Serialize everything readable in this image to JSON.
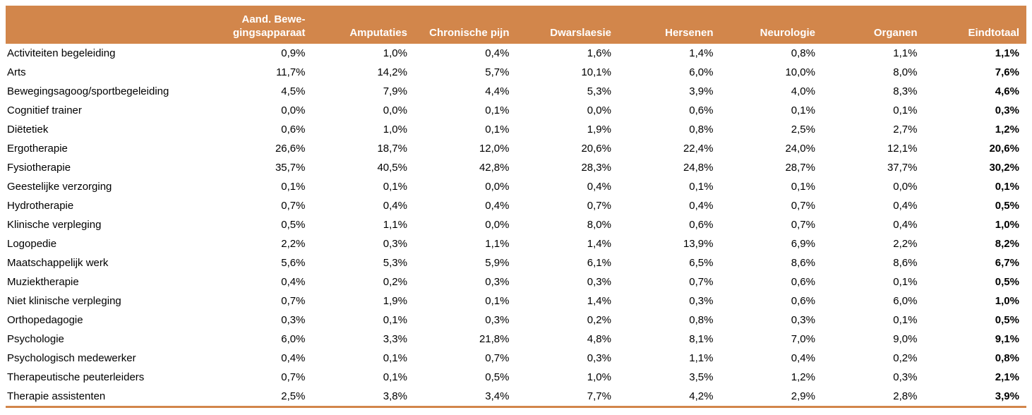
{
  "colors": {
    "header_bg": "#D2864B",
    "header_text": "#FFFFFF",
    "body_text": "#000000",
    "bottom_border": "#D2864B"
  },
  "chart_data": {
    "type": "table",
    "title": "",
    "value_format": "percent, comma decimal separator",
    "columns": [
      "",
      "Aand. Bewe-\ngingsapparaat",
      "Amputaties",
      "Chronische pijn",
      "Dwarslaesie",
      "Hersenen",
      "Neurologie",
      "Organen",
      "Eindtotaal"
    ],
    "rows": [
      {
        "label": "Activiteiten begeleiding",
        "values": [
          "0,9%",
          "1,0%",
          "0,4%",
          "1,6%",
          "1,4%",
          "0,8%",
          "1,1%"
        ],
        "total": "1,1%"
      },
      {
        "label": "Arts",
        "values": [
          "11,7%",
          "14,2%",
          "5,7%",
          "10,1%",
          "6,0%",
          "10,0%",
          "8,0%"
        ],
        "total": "7,6%"
      },
      {
        "label": "Bewegingsagoog/sportbegeleiding",
        "values": [
          "4,5%",
          "7,9%",
          "4,4%",
          "5,3%",
          "3,9%",
          "4,0%",
          "8,3%"
        ],
        "total": "4,6%"
      },
      {
        "label": "Cognitief trainer",
        "values": [
          "0,0%",
          "0,0%",
          "0,1%",
          "0,0%",
          "0,6%",
          "0,1%",
          "0,1%"
        ],
        "total": "0,3%"
      },
      {
        "label": "Diëtetiek",
        "values": [
          "0,6%",
          "1,0%",
          "0,1%",
          "1,9%",
          "0,8%",
          "2,5%",
          "2,7%"
        ],
        "total": "1,2%"
      },
      {
        "label": "Ergotherapie",
        "values": [
          "26,6%",
          "18,7%",
          "12,0%",
          "20,6%",
          "22,4%",
          "24,0%",
          "12,1%"
        ],
        "total": "20,6%"
      },
      {
        "label": "Fysiotherapie",
        "values": [
          "35,7%",
          "40,5%",
          "42,8%",
          "28,3%",
          "24,8%",
          "28,7%",
          "37,7%"
        ],
        "total": "30,2%"
      },
      {
        "label": "Geestelijke verzorging",
        "values": [
          "0,1%",
          "0,1%",
          "0,0%",
          "0,4%",
          "0,1%",
          "0,1%",
          "0,0%"
        ],
        "total": "0,1%"
      },
      {
        "label": "Hydrotherapie",
        "values": [
          "0,7%",
          "0,4%",
          "0,4%",
          "0,7%",
          "0,4%",
          "0,7%",
          "0,4%"
        ],
        "total": "0,5%"
      },
      {
        "label": "Klinische verpleging",
        "values": [
          "0,5%",
          "1,1%",
          "0,0%",
          "8,0%",
          "0,6%",
          "0,7%",
          "0,4%"
        ],
        "total": "1,0%"
      },
      {
        "label": "Logopedie",
        "values": [
          "2,2%",
          "0,3%",
          "1,1%",
          "1,4%",
          "13,9%",
          "6,9%",
          "2,2%"
        ],
        "total": "8,2%"
      },
      {
        "label": "Maatschappelijk werk",
        "values": [
          "5,6%",
          "5,3%",
          "5,9%",
          "6,1%",
          "6,5%",
          "8,6%",
          "8,6%"
        ],
        "total": "6,7%"
      },
      {
        "label": "Muziektherapie",
        "values": [
          "0,4%",
          "0,2%",
          "0,3%",
          "0,3%",
          "0,7%",
          "0,6%",
          "0,1%"
        ],
        "total": "0,5%"
      },
      {
        "label": "Niet klinische verpleging",
        "values": [
          "0,7%",
          "1,9%",
          "0,1%",
          "1,4%",
          "0,3%",
          "0,6%",
          "6,0%"
        ],
        "total": "1,0%"
      },
      {
        "label": "Orthopedagogie",
        "values": [
          "0,3%",
          "0,1%",
          "0,3%",
          "0,2%",
          "0,8%",
          "0,3%",
          "0,1%"
        ],
        "total": "0,5%"
      },
      {
        "label": "Psychologie",
        "values": [
          "6,0%",
          "3,3%",
          "21,8%",
          "4,8%",
          "8,1%",
          "7,0%",
          "9,0%"
        ],
        "total": "9,1%"
      },
      {
        "label": "Psychologisch medewerker",
        "values": [
          "0,4%",
          "0,1%",
          "0,7%",
          "0,3%",
          "1,1%",
          "0,4%",
          "0,2%"
        ],
        "total": "0,8%"
      },
      {
        "label": "Therapeutische peuterleiders",
        "values": [
          "0,7%",
          "0,1%",
          "0,5%",
          "1,0%",
          "3,5%",
          "1,2%",
          "0,3%"
        ],
        "total": "2,1%"
      },
      {
        "label": "Therapie assistenten",
        "values": [
          "2,5%",
          "3,8%",
          "3,4%",
          "7,7%",
          "4,2%",
          "2,9%",
          "2,8%"
        ],
        "total": "3,9%"
      }
    ]
  }
}
